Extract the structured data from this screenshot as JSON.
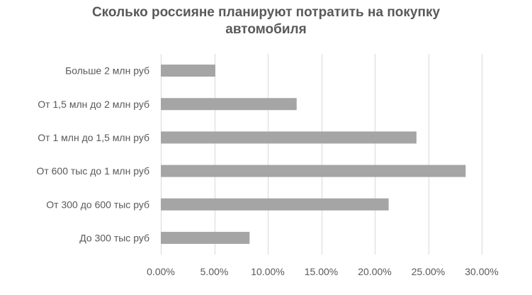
{
  "chart_data": {
    "type": "bar",
    "orientation": "horizontal",
    "title_lines": [
      "Сколько россияне планируют потратить на покупку",
      "автомобиля"
    ],
    "categories": [
      "Больше 2 млн руб",
      "От 1,5 млн до 2 млн руб",
      "От 1 млн до 1,5 млн руб",
      "От 600 тыс до 1 млн руб",
      "От 300 до 600 тыс руб",
      "До 300 тыс руб"
    ],
    "values": [
      0.051,
      0.127,
      0.239,
      0.285,
      0.213,
      0.083
    ],
    "x_ticks": [
      "0.00%",
      "5.00%",
      "10.00%",
      "15.00%",
      "20.00%",
      "25.00%",
      "30.00%"
    ],
    "xlim": [
      0,
      0.3
    ],
    "xlabel": "",
    "ylabel": "",
    "grid": "vertical",
    "legend": "none",
    "colors": {
      "bar": "#a5a5a5",
      "grid": "#d9d9d9",
      "text": "#595959"
    }
  }
}
